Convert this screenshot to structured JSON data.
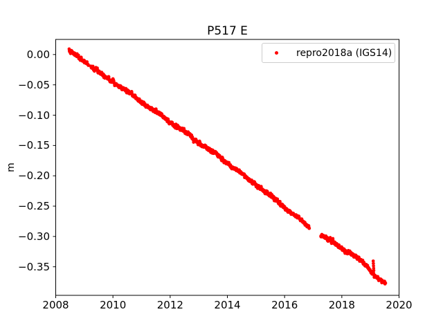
{
  "chart_data": {
    "type": "scatter",
    "title": "P517 E",
    "xlabel": "",
    "ylabel": "m",
    "xlim": [
      2008,
      2020
    ],
    "ylim": [
      -0.3971,
      0.0249
    ],
    "grid": false,
    "xticks": [
      2008,
      2010,
      2012,
      2014,
      2016,
      2018,
      2020
    ],
    "xtick_labels": [
      "2008",
      "2010",
      "2012",
      "2014",
      "2016",
      "2018",
      "2020"
    ],
    "yticks": [
      0.0,
      -0.05,
      -0.1,
      -0.15,
      -0.2,
      -0.25,
      -0.3,
      -0.35
    ],
    "ytick_labels": [
      "0.00",
      "−0.05",
      "−0.10",
      "−0.15",
      "−0.20",
      "−0.25",
      "−0.30",
      "−0.35"
    ],
    "legend": {
      "position": "upper right",
      "entries": [
        {
          "label": "repro2018a (IGS14)",
          "color": "#ff0000",
          "marker": "dot"
        }
      ]
    },
    "series": [
      {
        "name": "repro2018a (IGS14)",
        "color": "#ff0000",
        "marker": ".",
        "marker_radius_px": 2.3,
        "sample_step_years": 0.006,
        "noise_std_m": 0.0013,
        "noise_ar": 0.5,
        "seasonal_amp_m": 0.0012,
        "seasonal_phase_year": 2008.3,
        "bump": {
          "center": 2010.0,
          "amplitude_m": 0.005,
          "width_years": 0.045
        },
        "trend_points": [
          [
            2008.47,
            0.0045
          ],
          [
            2008.6,
            0.0015
          ],
          [
            2008.78,
            -0.004
          ],
          [
            2009.0,
            -0.0105
          ],
          [
            2009.145,
            -0.015
          ],
          [
            2009.225,
            -0.0195
          ],
          [
            2010.0,
            -0.045
          ],
          [
            2011.0,
            -0.078
          ],
          [
            2012.0,
            -0.111
          ],
          [
            2013.0,
            -0.1445
          ],
          [
            2014.0,
            -0.179
          ],
          [
            2015.0,
            -0.2145
          ],
          [
            2016.0,
            -0.2515
          ],
          [
            2016.865,
            -0.285
          ],
          [
            2017.265,
            -0.2975
          ],
          [
            2018.0,
            -0.3195
          ],
          [
            2018.72,
            -0.341
          ],
          [
            2019.0,
            -0.3555
          ],
          [
            2019.2,
            -0.366
          ],
          [
            2019.38,
            -0.373
          ],
          [
            2019.53,
            -0.377
          ]
        ],
        "data_gaps": [
          [
            2009.145,
            2009.225
          ],
          [
            2016.865,
            2017.265
          ]
        ],
        "outliers": [
          [
            2019.098,
            -0.3405
          ],
          [
            2019.103,
            -0.3445
          ],
          [
            2019.108,
            -0.3485
          ],
          [
            2019.113,
            -0.3525
          ],
          [
            2019.118,
            -0.356
          ]
        ],
        "x_start": 2008.47,
        "x_end": 2019.53
      }
    ]
  }
}
